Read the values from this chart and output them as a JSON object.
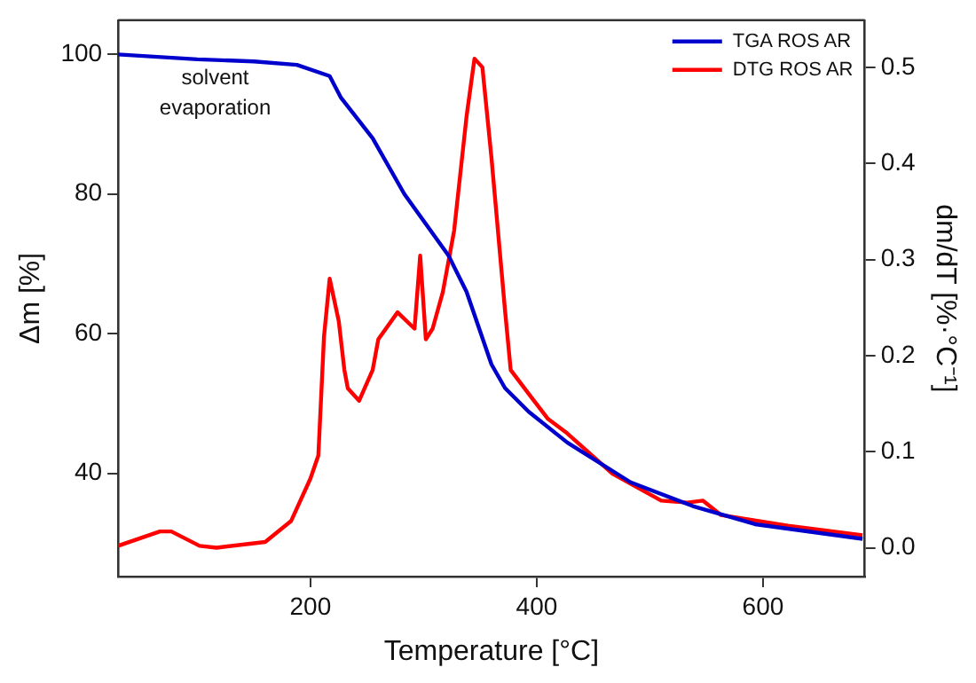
{
  "chart_data": {
    "type": "line",
    "xlabel": "Temperature [°C]",
    "ylabel": "Δm [%]",
    "y2label": "dm/dT [%·°C⁻¹]",
    "annotations": [
      "solvent evaporation"
    ],
    "xlim": [
      30,
      690
    ],
    "xticks": [
      200,
      400,
      600
    ],
    "ylim": [
      25.2,
      104.9
    ],
    "yticks": [
      40,
      60,
      80,
      100
    ],
    "y2lim": [
      -0.03,
      0.549
    ],
    "y2ticks": [
      {
        "value": 0,
        "label": "0.0"
      },
      0.1,
      0.2,
      0.3,
      0.4,
      0.5
    ],
    "grid": false,
    "legend": "top right",
    "marker": "none",
    "line_style": "solid",
    "series": [
      {
        "name": "TGA ROS AR",
        "color": "#0000cc",
        "x": [
          30,
          100,
          150,
          188,
          217,
          227,
          255,
          283,
          322,
          338,
          360,
          372,
          393,
          427,
          483,
          538,
          593,
          688
        ],
        "values": [
          100,
          99.3,
          99,
          98.5,
          96.9,
          93.8,
          88,
          80,
          71.2,
          66,
          55.6,
          52.2,
          48.8,
          44.4,
          38.7,
          35.3,
          32.7,
          30.6
        ]
      },
      {
        "name": "DTG ROS AR",
        "color": "#ff0000",
        "axis": "y2",
        "x": [
          30,
          67,
          77,
          102,
          117,
          160,
          183,
          200,
          207,
          212,
          217,
          225,
          230,
          233,
          243,
          255,
          260,
          277,
          292,
          297,
          302,
          308,
          317,
          327,
          338,
          345,
          352,
          360,
          372,
          377,
          393,
          410,
          427,
          467,
          510,
          533,
          547,
          563,
          622,
          688
        ],
        "values": [
          0.002,
          0.017,
          0.017,
          0.002,
          0,
          0.006,
          0.028,
          0.072,
          0.096,
          0.22,
          0.28,
          0.236,
          0.185,
          0.166,
          0.153,
          0.185,
          0.217,
          0.245,
          0.228,
          0.304,
          0.217,
          0.228,
          0.266,
          0.33,
          0.449,
          0.509,
          0.5,
          0.406,
          0.247,
          0.185,
          0.16,
          0.134,
          0.119,
          0.077,
          0.049,
          0.047,
          0.049,
          0.034,
          0.023,
          0.013
        ]
      }
    ]
  }
}
